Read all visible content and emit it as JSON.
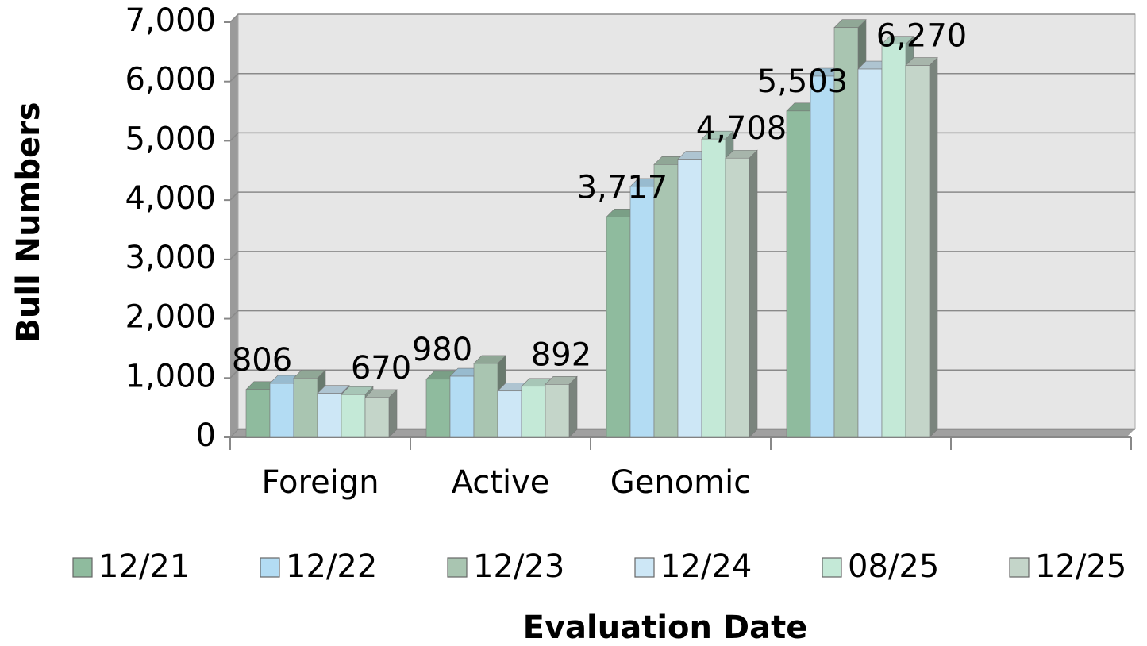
{
  "chart_data": {
    "type": "bar3d",
    "x_label": "Evaluation Date",
    "y_label": "Bull Numbers",
    "categories": [
      "Foreign",
      "Active",
      "Genomic",
      null,
      null
    ],
    "series": [
      {
        "name": "12/21",
        "color": "#8fbb9e",
        "values": [
          806,
          980,
          3717,
          5503,
          null
        ],
        "value_labels": [
          "806",
          "980",
          "3,717",
          "5,503",
          null
        ]
      },
      {
        "name": "12/22",
        "color": "#b3dcf3",
        "values": [
          910,
          1030,
          4230,
          6090,
          null
        ]
      },
      {
        "name": "12/23",
        "color": "#a9c5b1",
        "values": [
          1000,
          1245,
          4600,
          6910,
          null
        ]
      },
      {
        "name": "12/24",
        "color": "#cde7f6",
        "values": [
          740,
          780,
          4690,
          6210,
          null
        ]
      },
      {
        "name": "08/25",
        "color": "#c4e9d7",
        "values": [
          720,
          860,
          5030,
          6630,
          null
        ]
      },
      {
        "name": "12/25",
        "color": "#c4d5c9",
        "values": [
          670,
          892,
          4708,
          6270,
          null
        ],
        "value_labels": [
          "670",
          "892",
          "4,708",
          "6,270",
          null
        ]
      }
    ],
    "ylim": [
      0,
      7000
    ],
    "yticks": [
      0,
      {
        "value": 1000,
        "label": "1,000"
      },
      {
        "value": 2000,
        "label": "2,000"
      },
      {
        "value": 3000,
        "label": "3,000"
      },
      {
        "value": 4000,
        "label": "4,000"
      },
      {
        "value": 5000,
        "label": "5,000"
      },
      {
        "value": 6000,
        "label": "6,000"
      },
      {
        "value": 7000,
        "label": "7,000"
      }
    ],
    "grid": true,
    "legend": "bottom"
  }
}
